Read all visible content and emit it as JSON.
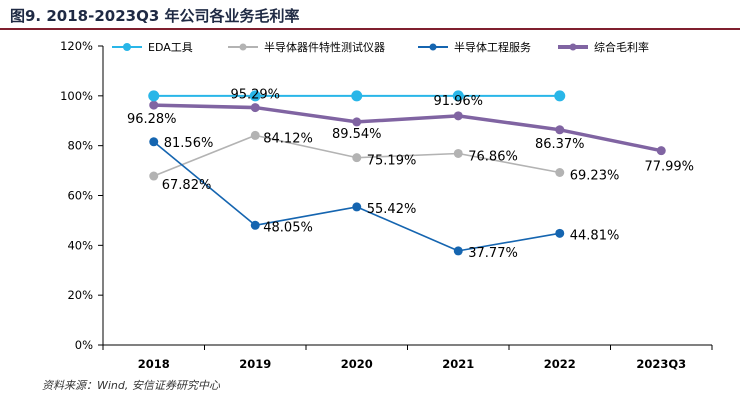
{
  "page": {
    "title": "图9. 2018-2023Q3 年公司各业务毛利率",
    "source": "资料来源：Wind, 安信证券研究中心"
  },
  "chart_data": {
    "type": "line",
    "categories": [
      "2018",
      "2019",
      "2020",
      "2021",
      "2022",
      "2023Q3"
    ],
    "ylim": [
      0,
      120
    ],
    "yticks": [
      0,
      20,
      40,
      60,
      80,
      100,
      120
    ],
    "ytick_labels": [
      "0%",
      "20%",
      "40%",
      "60%",
      "80%",
      "100%",
      "120%"
    ],
    "grid": false,
    "legend_position": "top",
    "series": [
      {
        "name": "EDA工具",
        "color": "#29b6e8",
        "width": 2,
        "values": [
          100,
          100,
          100,
          100,
          100,
          null
        ],
        "labels": [
          null,
          null,
          null,
          null,
          null,
          null
        ]
      },
      {
        "name": "半导体器件特性测试仪器",
        "color": "#b3b3b3",
        "width": 1.6,
        "values": [
          67.82,
          84.12,
          75.19,
          76.86,
          69.23,
          null
        ],
        "labels": [
          "67.82%",
          "84.12%",
          "75.19%",
          "76.86%",
          "69.23%",
          null
        ]
      },
      {
        "name": "半导体工程服务",
        "color": "#1565b0",
        "width": 1.6,
        "values": [
          81.56,
          48.05,
          55.42,
          37.77,
          44.81,
          null
        ],
        "labels": [
          "81.56%",
          "48.05%",
          "55.42%",
          "37.77%",
          "44.81%",
          null
        ]
      },
      {
        "name": "综合毛利率",
        "color": "#8064a2",
        "width": 3.5,
        "values": [
          96.28,
          95.29,
          89.54,
          91.96,
          86.37,
          77.99
        ],
        "labels": [
          "96.28%",
          "95.29%",
          "89.54%",
          "91.96%",
          "86.37%",
          "77.99%"
        ]
      }
    ]
  }
}
